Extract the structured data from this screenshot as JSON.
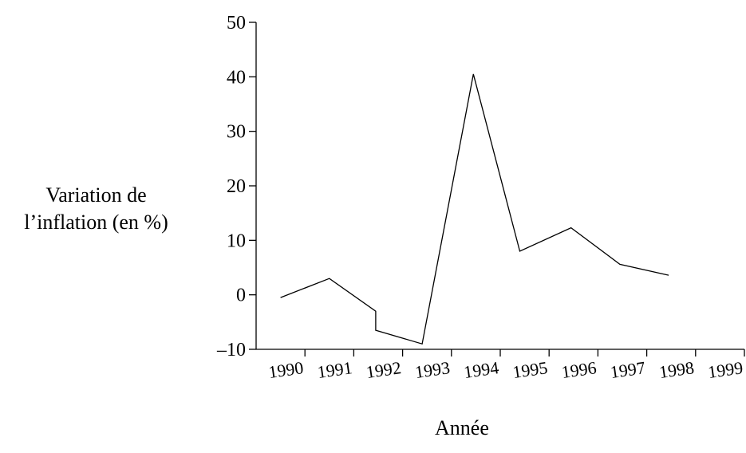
{
  "chart_data": {
    "type": "line",
    "title": "",
    "xlabel": "Année",
    "ylabel_line1": "Variation de",
    "ylabel_line2": "l’inflation (en %)",
    "ylim": [
      -10,
      50
    ],
    "yticks": [
      -10,
      0,
      10,
      20,
      30,
      40,
      50
    ],
    "ytick_labels": [
      "–10",
      "0",
      "10",
      "20",
      "30",
      "40",
      "50"
    ],
    "xticks": [
      "1990",
      "1991",
      "1992",
      "1993",
      "1994",
      "1995",
      "1996",
      "1997",
      "1998",
      "1999"
    ],
    "xlim": [
      1990,
      2000
    ],
    "grid": false,
    "series": [
      {
        "x": [
          1990.5,
          1991.5,
          1992.45,
          1992.45,
          1993.4,
          1994.45,
          1995.4,
          1996.45,
          1997.45,
          1998.45
        ],
        "y": [
          -0.5,
          3,
          -3,
          -6.5,
          -9,
          40.5,
          8,
          12.3,
          5.6,
          3.6
        ]
      }
    ]
  }
}
